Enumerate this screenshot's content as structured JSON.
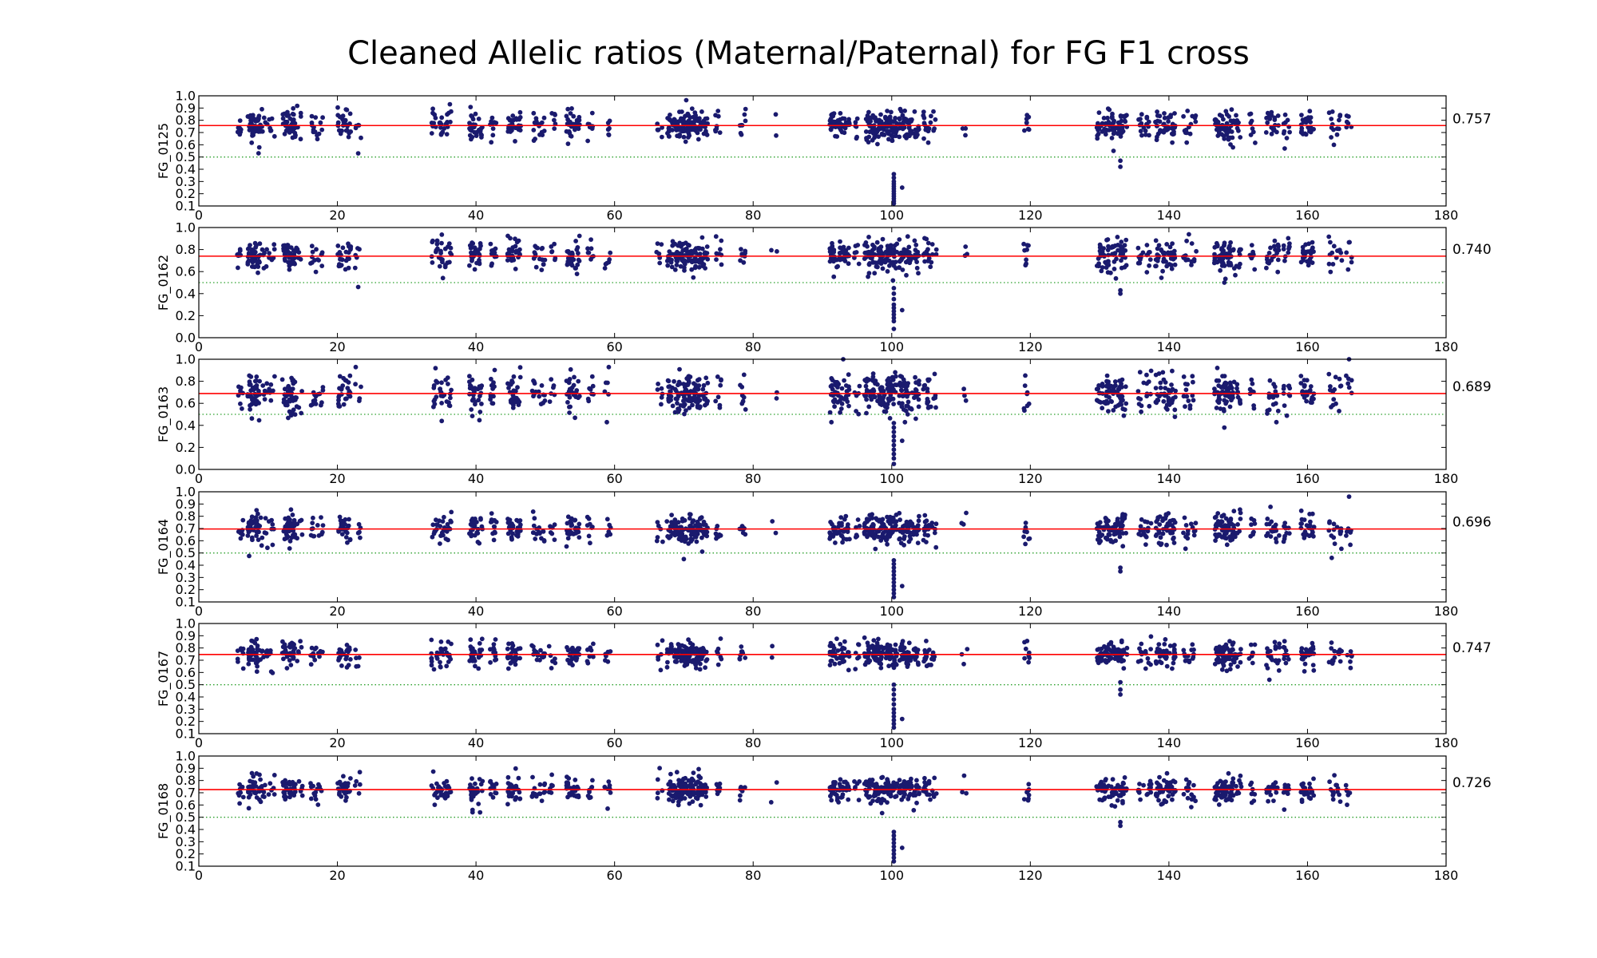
{
  "chart_data": {
    "type": "scatter",
    "title": "Cleaned Allelic ratios (Maternal/Paternal) for FG F1 cross",
    "xlim": [
      0,
      180
    ],
    "xticks": [
      "0",
      "20",
      "40",
      "60",
      "80",
      "100",
      "120",
      "140",
      "160",
      "180"
    ],
    "reference_line": 0.5,
    "colors": {
      "points": "#1a1a6e",
      "mean_line": "#ff0000",
      "reference_line": "#2ca02c"
    },
    "clusters": [
      {
        "x": 6,
        "n": 8
      },
      {
        "x": 7.5,
        "n": 22
      },
      {
        "x": 8.5,
        "n": 18
      },
      {
        "x": 9.5,
        "n": 6
      },
      {
        "x": 10.5,
        "n": 6
      },
      {
        "x": 12.5,
        "n": 16
      },
      {
        "x": 13.5,
        "n": 22
      },
      {
        "x": 14.5,
        "n": 5
      },
      {
        "x": 16.5,
        "n": 8
      },
      {
        "x": 17.5,
        "n": 6
      },
      {
        "x": 20.5,
        "n": 14
      },
      {
        "x": 21.5,
        "n": 12
      },
      {
        "x": 23,
        "n": 5
      },
      {
        "x": 34,
        "n": 10
      },
      {
        "x": 35,
        "n": 10
      },
      {
        "x": 36,
        "n": 10
      },
      {
        "x": 39.5,
        "n": 18
      },
      {
        "x": 40.5,
        "n": 10
      },
      {
        "x": 42.5,
        "n": 12
      },
      {
        "x": 45,
        "n": 18
      },
      {
        "x": 46,
        "n": 12
      },
      {
        "x": 48.5,
        "n": 8
      },
      {
        "x": 49.5,
        "n": 8
      },
      {
        "x": 51,
        "n": 6
      },
      {
        "x": 53.5,
        "n": 16
      },
      {
        "x": 54.5,
        "n": 12
      },
      {
        "x": 56.5,
        "n": 8
      },
      {
        "x": 59,
        "n": 6
      },
      {
        "x": 66.5,
        "n": 6
      },
      {
        "x": 68,
        "n": 14
      },
      {
        "x": 69,
        "n": 18
      },
      {
        "x": 70,
        "n": 20
      },
      {
        "x": 71,
        "n": 24
      },
      {
        "x": 72,
        "n": 22
      },
      {
        "x": 73,
        "n": 14
      },
      {
        "x": 75,
        "n": 8
      },
      {
        "x": 78.5,
        "n": 8
      },
      {
        "x": 83,
        "n": 2
      },
      {
        "x": 91.5,
        "n": 18
      },
      {
        "x": 92.5,
        "n": 14
      },
      {
        "x": 93.5,
        "n": 12
      },
      {
        "x": 95,
        "n": 6
      },
      {
        "x": 96.5,
        "n": 18
      },
      {
        "x": 97.5,
        "n": 18
      },
      {
        "x": 98.5,
        "n": 20
      },
      {
        "x": 99.5,
        "n": 20
      },
      {
        "x": 100.3,
        "n": 16
      },
      {
        "x": 101.5,
        "n": 18
      },
      {
        "x": 102.5,
        "n": 18
      },
      {
        "x": 103.5,
        "n": 14
      },
      {
        "x": 105,
        "n": 14
      },
      {
        "x": 106,
        "n": 6
      },
      {
        "x": 110.5,
        "n": 3
      },
      {
        "x": 119.5,
        "n": 8
      },
      {
        "x": 130,
        "n": 14
      },
      {
        "x": 131,
        "n": 16
      },
      {
        "x": 132,
        "n": 14
      },
      {
        "x": 133,
        "n": 16
      },
      {
        "x": 133.5,
        "n": 10
      },
      {
        "x": 136,
        "n": 8
      },
      {
        "x": 137,
        "n": 8
      },
      {
        "x": 138.5,
        "n": 14
      },
      {
        "x": 139.5,
        "n": 14
      },
      {
        "x": 140.5,
        "n": 14
      },
      {
        "x": 142.5,
        "n": 8
      },
      {
        "x": 143.5,
        "n": 6
      },
      {
        "x": 147,
        "n": 16
      },
      {
        "x": 148,
        "n": 24
      },
      {
        "x": 149,
        "n": 18
      },
      {
        "x": 150,
        "n": 8
      },
      {
        "x": 152,
        "n": 8
      },
      {
        "x": 154.5,
        "n": 10
      },
      {
        "x": 155.5,
        "n": 10
      },
      {
        "x": 157,
        "n": 10
      },
      {
        "x": 159.5,
        "n": 14
      },
      {
        "x": 160.5,
        "n": 12
      },
      {
        "x": 163.5,
        "n": 8
      },
      {
        "x": 164.5,
        "n": 6
      },
      {
        "x": 166,
        "n": 6
      }
    ],
    "panels": [
      {
        "label": "FG_0125",
        "mean_label": "0.757",
        "mean": 0.757,
        "ylim": [
          0.1,
          1.0
        ],
        "yticks": [
          "0.1",
          "0.2",
          "0.3",
          "0.4",
          "0.5",
          "0.6",
          "0.7",
          "0.8",
          "0.9",
          "1.0"
        ],
        "spread": 0.08,
        "seed": 11,
        "outliers": [
          {
            "x": 100.3,
            "y": 0.36
          },
          {
            "x": 100.3,
            "y": 0.33
          },
          {
            "x": 100.3,
            "y": 0.3
          },
          {
            "x": 100.3,
            "y": 0.28
          },
          {
            "x": 100.3,
            "y": 0.26
          },
          {
            "x": 100.3,
            "y": 0.24
          },
          {
            "x": 100.3,
            "y": 0.22
          },
          {
            "x": 100.3,
            "y": 0.2
          },
          {
            "x": 100.3,
            "y": 0.18
          },
          {
            "x": 100.3,
            "y": 0.16
          },
          {
            "x": 100.3,
            "y": 0.14
          },
          {
            "x": 100.3,
            "y": 0.12
          },
          {
            "x": 101.5,
            "y": 0.25
          },
          {
            "x": 133,
            "y": 0.42
          },
          {
            "x": 133,
            "y": 0.47
          },
          {
            "x": 132,
            "y": 0.55
          },
          {
            "x": 23,
            "y": 0.53
          }
        ]
      },
      {
        "label": "FG_0162",
        "mean_label": "0.740",
        "mean": 0.74,
        "ylim": [
          0.0,
          1.0
        ],
        "yticks": [
          "0.0",
          "0.2",
          "0.4",
          "0.6",
          "0.8",
          "1.0"
        ],
        "spread": 0.09,
        "seed": 23,
        "outliers": [
          {
            "x": 100.3,
            "y": 0.45
          },
          {
            "x": 100.3,
            "y": 0.4
          },
          {
            "x": 100.3,
            "y": 0.35
          },
          {
            "x": 100.3,
            "y": 0.3
          },
          {
            "x": 100.3,
            "y": 0.27
          },
          {
            "x": 100.3,
            "y": 0.24
          },
          {
            "x": 100.3,
            "y": 0.21
          },
          {
            "x": 100.3,
            "y": 0.18
          },
          {
            "x": 100.3,
            "y": 0.15
          },
          {
            "x": 100.3,
            "y": 0.08
          },
          {
            "x": 101.5,
            "y": 0.25
          },
          {
            "x": 133,
            "y": 0.4
          },
          {
            "x": 133,
            "y": 0.43
          },
          {
            "x": 23,
            "y": 0.46
          },
          {
            "x": 148,
            "y": 0.5
          }
        ]
      },
      {
        "label": "FG_0163",
        "mean_label": "0.689",
        "mean": 0.689,
        "ylim": [
          0.0,
          1.0
        ],
        "yticks": [
          "0.0",
          "0.2",
          "0.4",
          "0.6",
          "0.8",
          "1.0"
        ],
        "spread": 0.12,
        "seed": 37,
        "outliers": [
          {
            "x": 100.3,
            "y": 0.42
          },
          {
            "x": 100.3,
            "y": 0.38
          },
          {
            "x": 100.3,
            "y": 0.34
          },
          {
            "x": 100.3,
            "y": 0.3
          },
          {
            "x": 100.3,
            "y": 0.26
          },
          {
            "x": 100.3,
            "y": 0.22
          },
          {
            "x": 100.3,
            "y": 0.18
          },
          {
            "x": 100.3,
            "y": 0.14
          },
          {
            "x": 100.3,
            "y": 0.1
          },
          {
            "x": 100.3,
            "y": 0.05
          },
          {
            "x": 101.5,
            "y": 0.26
          },
          {
            "x": 93,
            "y": 1.0
          },
          {
            "x": 166,
            "y": 1.0
          },
          {
            "x": 148,
            "y": 0.38
          }
        ]
      },
      {
        "label": "FG_0164",
        "mean_label": "0.696",
        "mean": 0.696,
        "ylim": [
          0.1,
          1.0
        ],
        "yticks": [
          "0.1",
          "0.2",
          "0.3",
          "0.4",
          "0.5",
          "0.6",
          "0.7",
          "0.8",
          "0.9",
          "1.0"
        ],
        "spread": 0.08,
        "seed": 41,
        "outliers": [
          {
            "x": 100.3,
            "y": 0.44
          },
          {
            "x": 100.3,
            "y": 0.41
          },
          {
            "x": 100.3,
            "y": 0.38
          },
          {
            "x": 100.3,
            "y": 0.35
          },
          {
            "x": 100.3,
            "y": 0.32
          },
          {
            "x": 100.3,
            "y": 0.29
          },
          {
            "x": 100.3,
            "y": 0.26
          },
          {
            "x": 100.3,
            "y": 0.23
          },
          {
            "x": 100.3,
            "y": 0.2
          },
          {
            "x": 100.3,
            "y": 0.17
          },
          {
            "x": 100.3,
            "y": 0.14
          },
          {
            "x": 101.5,
            "y": 0.23
          },
          {
            "x": 133,
            "y": 0.35
          },
          {
            "x": 133,
            "y": 0.38
          },
          {
            "x": 166,
            "y": 0.96
          },
          {
            "x": 70,
            "y": 0.45
          },
          {
            "x": 163.5,
            "y": 0.46
          }
        ]
      },
      {
        "label": "FG_0167",
        "mean_label": "0.747",
        "mean": 0.747,
        "ylim": [
          0.1,
          1.0
        ],
        "yticks": [
          "0.1",
          "0.2",
          "0.3",
          "0.4",
          "0.5",
          "0.6",
          "0.7",
          "0.8",
          "0.9",
          "1.0"
        ],
        "spread": 0.07,
        "seed": 53,
        "outliers": [
          {
            "x": 100.3,
            "y": 0.5
          },
          {
            "x": 100.3,
            "y": 0.46
          },
          {
            "x": 100.3,
            "y": 0.42
          },
          {
            "x": 100.3,
            "y": 0.38
          },
          {
            "x": 100.3,
            "y": 0.34
          },
          {
            "x": 100.3,
            "y": 0.3
          },
          {
            "x": 100.3,
            "y": 0.27
          },
          {
            "x": 100.3,
            "y": 0.24
          },
          {
            "x": 100.3,
            "y": 0.21
          },
          {
            "x": 100.3,
            "y": 0.18
          },
          {
            "x": 100.3,
            "y": 0.15
          },
          {
            "x": 101.5,
            "y": 0.22
          },
          {
            "x": 133,
            "y": 0.42
          },
          {
            "x": 133,
            "y": 0.46
          },
          {
            "x": 133,
            "y": 0.52
          },
          {
            "x": 154.5,
            "y": 0.54
          }
        ]
      },
      {
        "label": "FG_0168",
        "mean_label": "0.726",
        "mean": 0.726,
        "ylim": [
          0.1,
          1.0
        ],
        "yticks": [
          "0.1",
          "0.2",
          "0.3",
          "0.4",
          "0.5",
          "0.6",
          "0.7",
          "0.8",
          "0.9",
          "1.0"
        ],
        "spread": 0.07,
        "seed": 67,
        "outliers": [
          {
            "x": 100.3,
            "y": 0.38
          },
          {
            "x": 100.3,
            "y": 0.35
          },
          {
            "x": 100.3,
            "y": 0.32
          },
          {
            "x": 100.3,
            "y": 0.29
          },
          {
            "x": 100.3,
            "y": 0.26
          },
          {
            "x": 100.3,
            "y": 0.23
          },
          {
            "x": 100.3,
            "y": 0.2
          },
          {
            "x": 100.3,
            "y": 0.17
          },
          {
            "x": 100.3,
            "y": 0.14
          },
          {
            "x": 101.5,
            "y": 0.25
          },
          {
            "x": 133,
            "y": 0.43
          },
          {
            "x": 133,
            "y": 0.46
          },
          {
            "x": 39.5,
            "y": 0.54
          },
          {
            "x": 39.5,
            "y": 0.56
          },
          {
            "x": 59,
            "y": 0.57
          }
        ]
      }
    ]
  }
}
